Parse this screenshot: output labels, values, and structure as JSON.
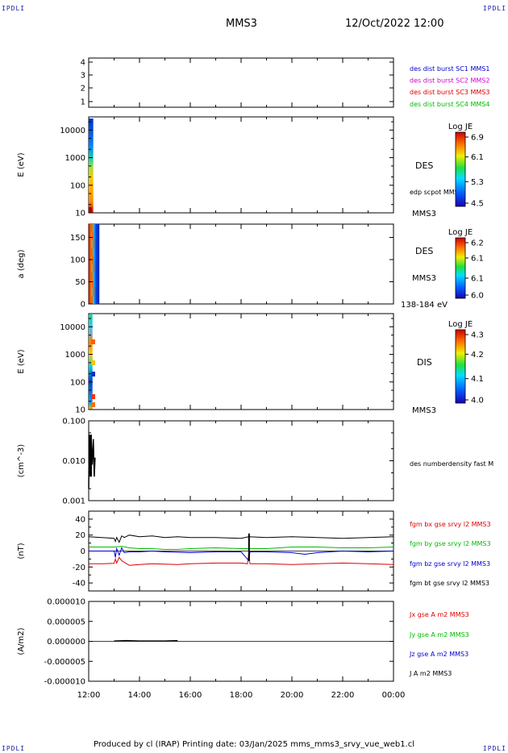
{
  "corners": {
    "tl": "IPDLI",
    "tr": "IPDLI",
    "bl": "IPDLI",
    "br": "IPDLI"
  },
  "header": {
    "spacecraft": "MMS3",
    "datetime": "12/Oct/2022 12:00"
  },
  "footer": {
    "text": "Produced by cl (IRAP)   Printing date: 03/Jan/2025   mms_mms3_srvy_vue_web1.cl"
  },
  "x_axis": {
    "ticks": [
      "12:00",
      "14:00",
      "16:00",
      "18:00",
      "20:00",
      "22:00",
      "00:00"
    ]
  },
  "colors": {
    "mms1": "#0000cc",
    "mms2": "#cc00cc",
    "mms3": "#dd0000",
    "mms4": "#00bb00",
    "bx": "#dd0000",
    "by": "#00bb00",
    "bz": "#0000cc",
    "bt": "#000000"
  },
  "chart_data": [
    {
      "type": "table",
      "panel": "spacecraft",
      "yticks": [
        "4",
        "3",
        "2",
        "1"
      ],
      "legend": [
        "des dist burst SC1 MMS1",
        "des dist burst SC2 MMS2",
        "des dist burst SC3 MMS3",
        "des dist burst SC4 MMS4"
      ]
    },
    {
      "type": "heatmap",
      "panel": "des-energy",
      "ylabel": "E (eV)",
      "yscale": "log",
      "ylim": [
        10,
        30000
      ],
      "yticks": [
        "10000",
        "1000",
        "100",
        "10"
      ],
      "data_xrange": [
        "12:00",
        "12:25"
      ],
      "labels": [
        "DES",
        "edp scpot MMS3",
        "MMS3"
      ],
      "colorbar": {
        "title": "Log JE",
        "ticks": [
          "6.9",
          "6.1",
          "5.3",
          "4.5"
        ],
        "range": [
          4.5,
          6.9
        ]
      }
    },
    {
      "type": "heatmap",
      "panel": "des-pitch",
      "ylabel": "a (deg)",
      "ylim": [
        0,
        180
      ],
      "yticks": [
        "150",
        "100",
        "50",
        "0"
      ],
      "data_xrange": [
        "12:00",
        "12:25"
      ],
      "labels": [
        "DES",
        "MMS3",
        "138-184 eV"
      ],
      "colorbar": {
        "title": "Log JE",
        "ticks": [
          "6.2",
          "6.1",
          "6.1",
          "6.0"
        ],
        "range": [
          6.0,
          6.2
        ]
      }
    },
    {
      "type": "heatmap",
      "panel": "dis-energy",
      "ylabel": "E (eV)",
      "yscale": "log",
      "ylim": [
        10,
        30000
      ],
      "yticks": [
        "10000",
        "1000",
        "100",
        "10"
      ],
      "data_xrange": [
        "12:00",
        "12:25"
      ],
      "labels": [
        "DIS",
        "MMS3"
      ],
      "colorbar": {
        "title": "Log JE",
        "ticks": [
          "4.3",
          "4.2",
          "4.1",
          "4.0"
        ],
        "range": [
          4.0,
          4.3
        ]
      }
    },
    {
      "type": "line",
      "panel": "density",
      "ylabel": "(cm^-3)",
      "yscale": "log",
      "ylim": [
        0.001,
        0.1
      ],
      "yticks": [
        "0.100",
        "0.010",
        "0.001"
      ],
      "legend": [
        "des numberdensity fast M"
      ],
      "series": [
        {
          "values": [
            [
              0.0,
              0.002
            ],
            [
              0.02,
              0.045
            ],
            [
              0.06,
              0.025
            ],
            [
              0.1,
              0.03
            ],
            [
              0.14,
              0.008
            ],
            [
              0.18,
              0.035
            ],
            [
              0.22,
              0.004
            ],
            [
              0.25,
              0.012
            ]
          ]
        }
      ]
    },
    {
      "type": "line",
      "panel": "fgm",
      "ylabel": "(nT)",
      "ylim": [
        -50,
        50
      ],
      "yticks": [
        "40",
        "20",
        "0",
        "-20",
        "-40"
      ],
      "legend": [
        "fgm bx gse srvy l2 MMS3",
        "fgm by gse srvy l2 MMS3",
        "fgm bz gse srvy l2 MMS3",
        "fgm bt gse srvy l2 MMS3"
      ],
      "series": [
        {
          "name": "fgm bx gse srvy l2 MMS3",
          "values": [
            [
              0,
              -16
            ],
            [
              0.5,
              -16
            ],
            [
              1.0,
              -15.5
            ],
            [
              1.05,
              -10
            ],
            [
              1.1,
              -15
            ],
            [
              1.2,
              -8
            ],
            [
              1.3,
              -12
            ],
            [
              1.4,
              -14
            ],
            [
              1.6,
              -18
            ],
            [
              2.0,
              -17
            ],
            [
              2.5,
              -16
            ],
            [
              3.0,
              -16.5
            ],
            [
              3.5,
              -17
            ],
            [
              4.0,
              -16
            ],
            [
              5.0,
              -15
            ],
            [
              6.0,
              -15
            ],
            [
              6.25,
              -16
            ],
            [
              6.3,
              -3
            ],
            [
              6.35,
              -16
            ],
            [
              7.0,
              -16
            ],
            [
              8.0,
              -17
            ],
            [
              9.0,
              -16
            ],
            [
              10.0,
              -15
            ],
            [
              11.0,
              -16
            ],
            [
              12.0,
              -17
            ]
          ]
        },
        {
          "name": "fgm by gse srvy l2 MMS3",
          "values": [
            [
              0,
              5
            ],
            [
              1.0,
              5
            ],
            [
              1.3,
              6
            ],
            [
              1.6,
              4
            ],
            [
              2.0,
              3
            ],
            [
              2.5,
              3
            ],
            [
              3.0,
              2
            ],
            [
              3.5,
              2
            ],
            [
              4.0,
              3
            ],
            [
              5.0,
              4
            ],
            [
              6.0,
              3
            ],
            [
              7.0,
              3
            ],
            [
              8.0,
              5
            ],
            [
              9.0,
              5
            ],
            [
              10.0,
              4
            ],
            [
              11.0,
              4
            ],
            [
              12.0,
              5
            ]
          ]
        },
        {
          "name": "fgm bz gse srvy l2 MMS3",
          "values": [
            [
              0,
              0
            ],
            [
              1.0,
              0
            ],
            [
              1.05,
              -8
            ],
            [
              1.1,
              3
            ],
            [
              1.2,
              -5
            ],
            [
              1.3,
              4
            ],
            [
              1.4,
              -2
            ],
            [
              1.6,
              -1
            ],
            [
              2.0,
              -1
            ],
            [
              2.5,
              0
            ],
            [
              3.0,
              -1
            ],
            [
              4.0,
              -2
            ],
            [
              5.0,
              -1
            ],
            [
              6.0,
              -1
            ],
            [
              6.3,
              -12
            ],
            [
              6.35,
              -1
            ],
            [
              7.0,
              -1
            ],
            [
              8.0,
              -2
            ],
            [
              8.5,
              -4
            ],
            [
              9.0,
              -2
            ],
            [
              10.0,
              0
            ],
            [
              11.0,
              -1
            ],
            [
              12.0,
              0
            ]
          ]
        },
        {
          "name": "fgm bt gse srvy l2 MMS3",
          "values": [
            [
              0,
              18
            ],
            [
              0.5,
              17
            ],
            [
              1.0,
              16
            ],
            [
              1.05,
              12
            ],
            [
              1.1,
              17
            ],
            [
              1.2,
              11
            ],
            [
              1.3,
              19
            ],
            [
              1.4,
              17
            ],
            [
              1.6,
              20
            ],
            [
              2.0,
              18
            ],
            [
              2.5,
              19
            ],
            [
              3.0,
              17
            ],
            [
              3.5,
              18
            ],
            [
              4.0,
              17
            ],
            [
              5.0,
              17
            ],
            [
              6.0,
              16
            ],
            [
              6.3,
              18
            ],
            [
              7.0,
              17
            ],
            [
              8.0,
              18
            ],
            [
              9.0,
              17
            ],
            [
              10.0,
              16
            ],
            [
              11.0,
              17
            ],
            [
              12.0,
              18
            ]
          ]
        }
      ]
    },
    {
      "type": "line",
      "panel": "current",
      "ylabel": "(A/m2)",
      "ylim": [
        -1e-05,
        1e-05
      ],
      "yticks": [
        "0.000010",
        "0.000005",
        "0.000000",
        "-0.000005",
        "-0.000010"
      ],
      "legend": [
        "Jx gse A m2 MMS3",
        "Jy gse A m2 MMS3",
        "Jz gse A m2 MMS3",
        "J A m2 MMS3"
      ],
      "series": [
        {
          "name": "J A m2 MMS3",
          "values": [
            [
              1.0,
              1e-07
            ],
            [
              1.5,
              2e-07
            ],
            [
              2.0,
              1e-07
            ],
            [
              3.0,
              1e-07
            ],
            [
              3.5,
              2e-07
            ]
          ]
        }
      ]
    }
  ]
}
